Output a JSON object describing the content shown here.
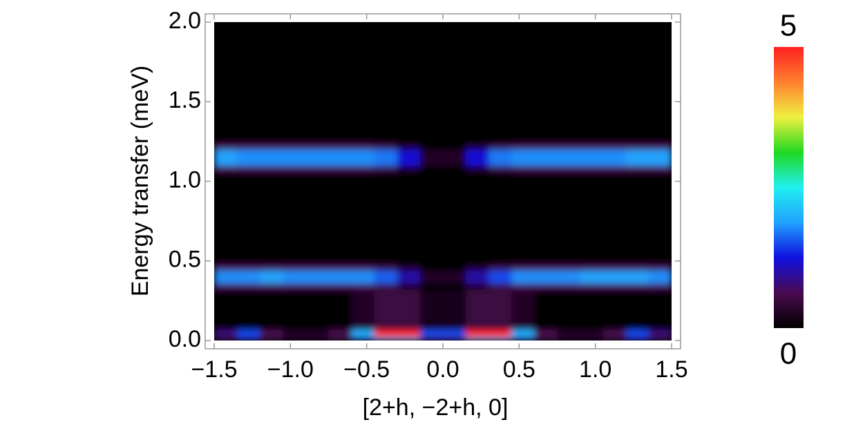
{
  "chart_data": {
    "type": "heatmap",
    "xlabel": "[2+h, −2+h, 0]",
    "ylabel": "Energy transfer (meV)",
    "xlim": [
      -1.5,
      1.5
    ],
    "ylim": [
      0,
      2
    ],
    "xticks": [
      {
        "value": -1.5,
        "label": "−1.5"
      },
      {
        "value": -1.0,
        "label": "−1.0"
      },
      {
        "value": -0.5,
        "label": "−0.5"
      },
      {
        "value": 0,
        "label": "0.0"
      },
      0.5,
      {
        "value": 1.0,
        "label": "1.0"
      },
      1.5
    ],
    "yticks": [
      {
        "value": 0,
        "label": "0.0"
      },
      0.5,
      {
        "value": 1.0,
        "label": "1.0"
      },
      1.5,
      {
        "value": 2.0,
        "label": "2.0"
      }
    ],
    "xbins": [
      -1.5,
      -1.35,
      -1.2,
      -1.05,
      -0.9,
      -0.75,
      -0.6,
      -0.45,
      -0.3,
      -0.15,
      0,
      0.15,
      0.3,
      0.45,
      0.6,
      0.75,
      0.9,
      1.05,
      1.2,
      1.35,
      1.5
    ],
    "ybins": [
      0,
      0.02,
      0.07,
      0.32,
      0.36,
      0.44,
      0.48,
      1.06,
      1.1,
      1.2,
      1.24,
      2.0
    ],
    "z": [
      [
        0.5,
        1.0,
        0.5,
        0.3,
        0.3,
        0.5,
        1.0,
        2.0,
        2.0,
        0.8,
        0.8,
        2.0,
        2.0,
        1.0,
        0.5,
        0.3,
        0.3,
        0.5,
        1.0,
        0.5
      ],
      [
        0.8,
        1.5,
        0.6,
        0.3,
        0.3,
        0.6,
        2.0,
        5,
        5,
        1.5,
        1.5,
        5,
        5,
        2.0,
        0.6,
        0.3,
        0.3,
        0.6,
        1.5,
        0.8
      ],
      [
        0,
        0,
        0,
        0,
        0,
        0,
        0.3,
        0.5,
        0.5,
        0.2,
        0.2,
        0.5,
        0.5,
        0.3,
        0,
        0,
        0,
        0,
        0,
        0
      ],
      [
        0.6,
        0.6,
        0.6,
        0.6,
        0.6,
        0.6,
        0.6,
        0.5,
        0.3,
        0,
        0,
        0.3,
        0.5,
        0.6,
        0.6,
        0.6,
        0.6,
        0.6,
        0.6,
        0.6
      ],
      [
        1.8,
        1.8,
        1.9,
        1.8,
        1.8,
        1.8,
        1.8,
        1.6,
        1.0,
        0.3,
        0.3,
        1.0,
        1.5,
        1.8,
        1.8,
        1.8,
        1.9,
        1.9,
        1.9,
        1.8
      ],
      [
        0.6,
        0.6,
        0.6,
        0.6,
        0.6,
        0.6,
        0.6,
        0.5,
        0.3,
        0,
        0,
        0.3,
        0.5,
        0.6,
        0.6,
        0.6,
        0.6,
        0.6,
        0.6,
        0.6
      ],
      [
        0,
        0,
        0,
        0,
        0,
        0,
        0,
        0,
        0,
        0,
        0,
        0,
        0,
        0,
        0,
        0,
        0,
        0,
        0,
        0
      ],
      [
        0.6,
        0.6,
        0.6,
        0.6,
        0.6,
        0.6,
        0.6,
        0.5,
        0.3,
        0,
        0,
        0.3,
        0.5,
        0.6,
        0.6,
        0.6,
        0.6,
        0.6,
        0.6,
        0.6
      ],
      [
        1.9,
        1.8,
        1.8,
        1.8,
        1.8,
        1.8,
        1.8,
        1.7,
        1.2,
        0.3,
        0.3,
        1.2,
        1.7,
        1.8,
        1.8,
        1.8,
        1.8,
        1.8,
        1.9,
        1.9
      ],
      [
        0.6,
        0.6,
        0.6,
        0.6,
        0.6,
        0.6,
        0.6,
        0.5,
        0.3,
        0,
        0,
        0.3,
        0.5,
        0.6,
        0.6,
        0.6,
        0.6,
        0.6,
        0.6,
        0.6
      ],
      [
        0,
        0,
        0,
        0,
        0,
        0,
        0,
        0,
        0,
        0,
        0,
        0,
        0,
        0,
        0,
        0,
        0,
        0,
        0,
        0
      ]
    ],
    "zlim": [
      0,
      5
    ],
    "zticks": [
      0,
      5
    ],
    "colormap": [
      "#000000",
      "#4a0a50",
      "#1010e0",
      "#20a0ff",
      "#20f0f0",
      "#20d820",
      "#f0f040",
      "#ff8030",
      "#ff2020"
    ]
  }
}
